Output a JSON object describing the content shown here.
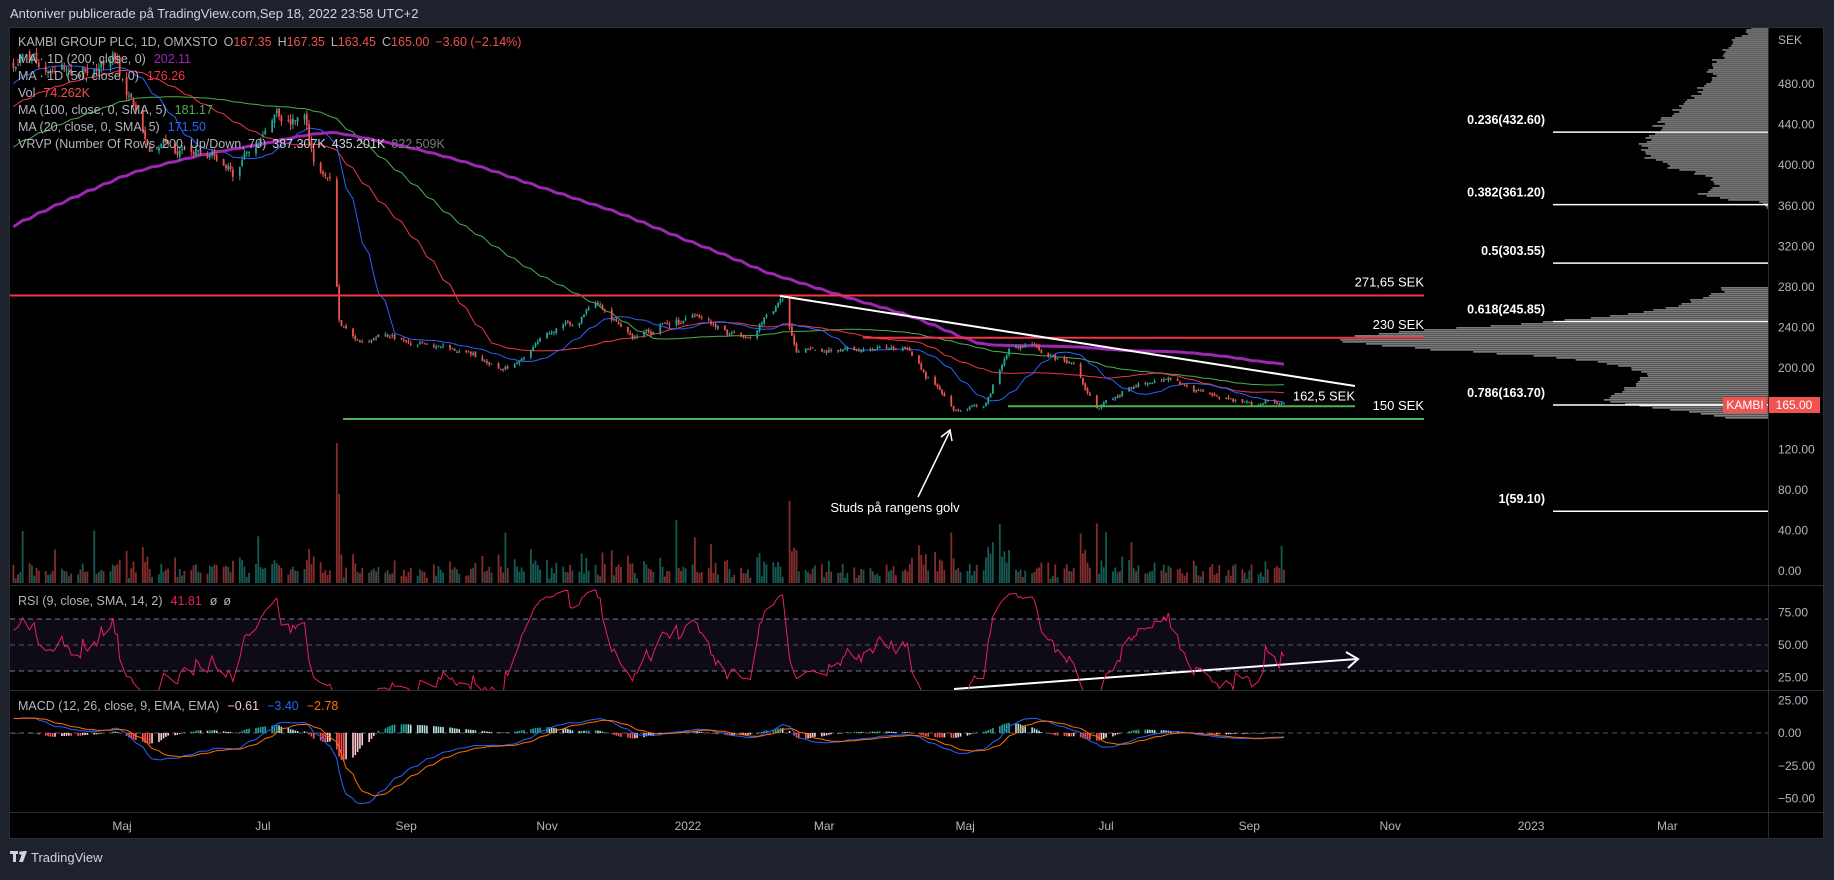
{
  "header": {
    "publisher_line": "Antoniver publicerade på TradingView.com,Sep 18, 2022 23:58 UTC+2"
  },
  "legend": {
    "symbol": "KAMBI GROUP PLC, 1D, OMXSTO",
    "ohlc": [
      {
        "k": "O",
        "v": "167.35"
      },
      {
        "k": "H",
        "v": "167.35"
      },
      {
        "k": "L",
        "v": "163.45"
      },
      {
        "k": "C",
        "v": "165.00"
      }
    ],
    "change": "−3.60 (−2.14%)",
    "ma200": {
      "label": "MA · 1D (200, close, 0)",
      "value": "202.11"
    },
    "ma50": {
      "label": "MA · 1D (50, close, 0)",
      "value": "176.26"
    },
    "vol": {
      "label": "Vol",
      "value": "74.262K"
    },
    "ma100": {
      "label": "MA (100, close, 0, SMA, 5)",
      "value": "181.17"
    },
    "ma20": {
      "label": "MA (20, close, 0, SMA, 5)",
      "value": "171.50"
    },
    "vrvp": {
      "label": "VRVP (Number Of Rows, 200, Up/Down, 70)",
      "v1": "387.307K",
      "v2": "435.201K",
      "v3": "822.509K"
    },
    "rsi": {
      "label": "RSI (9, close, SMA, 14, 2)",
      "value": "41.81",
      "e1": "ø",
      "e2": "ø"
    },
    "macd": {
      "label": "MACD (12, 26, close, 9, EMA, EMA)",
      "hist": "−0.61",
      "macd": "−3.40",
      "signal": "−2.78"
    }
  },
  "price_axis": {
    "unit": "SEK",
    "ticks": [
      "480.00",
      "440.00",
      "400.00",
      "360.00",
      "320.00",
      "280.00",
      "240.00",
      "200.00",
      "160.00",
      "120.00",
      "80.00",
      "40.00",
      "0.00"
    ],
    "tick_values": [
      480,
      440,
      400,
      360,
      320,
      280,
      240,
      200,
      160,
      120,
      80,
      40,
      0
    ]
  },
  "rsi_axis": {
    "ticks": [
      "75.00",
      "50.00",
      "25.00"
    ],
    "tick_values": [
      75,
      50,
      25
    ]
  },
  "macd_axis": {
    "ticks": [
      "25.00",
      "0.00",
      "−25.00",
      "−50.00"
    ],
    "tick_values": [
      25,
      0,
      -25,
      -50
    ]
  },
  "time_axis": [
    {
      "label": "Maj",
      "date": "2021-05-01"
    },
    {
      "label": "Jul",
      "date": "2021-07-01"
    },
    {
      "label": "Sep",
      "date": "2021-09-01"
    },
    {
      "label": "Nov",
      "date": "2021-11-01"
    },
    {
      "label": "2022",
      "date": "2022-01-01"
    },
    {
      "label": "Mar",
      "date": "2022-03-01"
    },
    {
      "label": "Maj",
      "date": "2022-05-01"
    },
    {
      "label": "Jul",
      "date": "2022-07-01"
    },
    {
      "label": "Sep",
      "date": "2022-09-01"
    },
    {
      "label": "Nov",
      "date": "2022-11-01"
    },
    {
      "label": "2023",
      "date": "2023-01-01"
    },
    {
      "label": "Mar",
      "date": "2023-03-01"
    }
  ],
  "last_price": {
    "ticker": "KAMBI",
    "value": "165.00"
  },
  "levels": [
    {
      "label": "271,65 SEK",
      "price": 271.65,
      "color": "#f23645"
    },
    {
      "label": "230 SEK",
      "price": 230,
      "color": "#f23645"
    },
    {
      "label": "162,5 SEK",
      "price": 162.5,
      "color": "#4caf50"
    },
    {
      "label": "150 SEK",
      "price": 150,
      "color": "#4caf50"
    }
  ],
  "fib": [
    {
      "label": "0.236(432.60)",
      "price": 432.6
    },
    {
      "label": "0.382(361.20)",
      "price": 361.2
    },
    {
      "label": "0.5(303.55)",
      "price": 303.55
    },
    {
      "label": "0.618(245.85)",
      "price": 245.85
    },
    {
      "label": "0.786(163.70)",
      "price": 163.7
    },
    {
      "label": "1(59.10)",
      "price": 59.1
    }
  ],
  "annotation": {
    "text": "Studs på rangens golv"
  },
  "footer": {
    "brand": "TradingView"
  },
  "colors": {
    "up": "#26a69a",
    "down": "#ef5350",
    "ma200": "#9c27b0",
    "ma50": "#f23645",
    "ma100": "#4caf50",
    "ma20": "#2962ff",
    "rsi": "#e91e63",
    "macd": "#2962ff",
    "signal": "#ff6d00"
  },
  "chart_data": {
    "type": "candlestick",
    "symbol": "KAMBI",
    "keypoints_close": [
      [
        "2021-03-15",
        494
      ],
      [
        "2021-04-29",
        494
      ],
      [
        "2021-05-14",
        413
      ],
      [
        "2021-05-28",
        413
      ],
      [
        "2021-06-18",
        400
      ],
      [
        "2021-07-06",
        448
      ],
      [
        "2021-07-19",
        442
      ],
      [
        "2021-07-23",
        400
      ],
      [
        "2021-07-30",
        378
      ],
      [
        "2021-08-03",
        240
      ],
      [
        "2021-08-09",
        228
      ],
      [
        "2021-09-03",
        228
      ],
      [
        "2021-09-28",
        216
      ],
      [
        "2021-10-13",
        193
      ],
      [
        "2021-10-28",
        222
      ],
      [
        "2021-11-23",
        263
      ],
      [
        "2021-12-08",
        228
      ],
      [
        "2022-01-03",
        251
      ],
      [
        "2022-01-27",
        228
      ],
      [
        "2022-02-11",
        268
      ],
      [
        "2022-02-17",
        216
      ],
      [
        "2022-03-09",
        216
      ],
      [
        "2022-04-04",
        222
      ],
      [
        "2022-04-18",
        182
      ],
      [
        "2022-04-26",
        158
      ],
      [
        "2022-05-09",
        164
      ],
      [
        "2022-05-20",
        216
      ],
      [
        "2022-05-30",
        222
      ],
      [
        "2022-06-17",
        205
      ],
      [
        "2022-06-27",
        164
      ],
      [
        "2022-07-15",
        182
      ],
      [
        "2022-07-29",
        187
      ],
      [
        "2022-08-18",
        170
      ],
      [
        "2022-09-12",
        166
      ],
      [
        "2022-09-16",
        165
      ]
    ],
    "ylim": [
      0,
      540
    ]
  }
}
